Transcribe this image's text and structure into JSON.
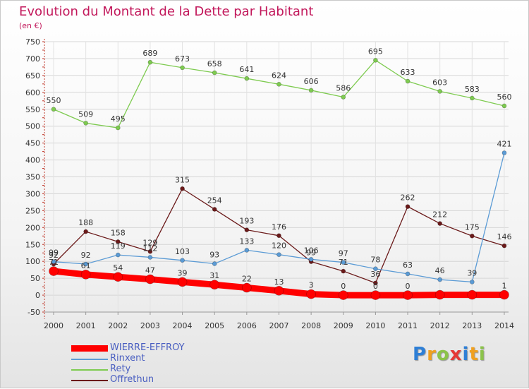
{
  "header": {
    "title": "Evolution du Montant de la Dette par Habitant",
    "subtitle": "(en €)"
  },
  "legend": {
    "items": [
      {
        "label": "WIERRE-EFFROY",
        "color": "#ff0000"
      },
      {
        "label": "Rinxent",
        "color": "#5b9bd5"
      },
      {
        "label": "Rety",
        "color": "#7ecb50"
      },
      {
        "label": "Offrethun",
        "color": "#6b1a1a"
      }
    ]
  },
  "logo": {
    "letters": [
      "P",
      "r",
      "o",
      "x",
      "i",
      "t",
      "i"
    ],
    "colors": [
      "#2e7fd6",
      "#f0a020",
      "#8bc34a",
      "#e53935",
      "#2e7fd6",
      "#f0a020",
      "#8bc34a"
    ]
  },
  "chart_data": {
    "type": "line",
    "x": [
      "2000",
      "2001",
      "2002",
      "2003",
      "2004",
      "2005",
      "2006",
      "2007",
      "2008",
      "2009",
      "2010",
      "2011",
      "2012",
      "2013",
      "2014"
    ],
    "ylim": [
      -50,
      750
    ],
    "yticks": [
      -50,
      0,
      50,
      100,
      150,
      200,
      250,
      300,
      350,
      400,
      450,
      500,
      550,
      600,
      650,
      700,
      750
    ],
    "grid": true,
    "series": [
      {
        "name": "Rety",
        "color": "#7ecb50",
        "values": [
          550,
          509,
          495,
          689,
          673,
          658,
          641,
          624,
          606,
          586,
          695,
          633,
          603,
          583,
          560
        ]
      },
      {
        "name": "Offrethun",
        "color": "#6b1a1a",
        "values": [
          92,
          188,
          158,
          129,
          315,
          254,
          193,
          176,
          99,
          71,
          36,
          262,
          212,
          175,
          146
        ]
      },
      {
        "name": "Rinxent",
        "color": "#5b9bd5",
        "values": [
          99,
          92,
          119,
          112,
          103,
          93,
          133,
          120,
          106,
          97,
          78,
          63,
          46,
          39,
          421
        ]
      },
      {
        "name": "WIERRE-EFFROY",
        "color": "#ff0000",
        "values": [
          71,
          61,
          54,
          47,
          39,
          31,
          22,
          13,
          3,
          0,
          0,
          0,
          1,
          1,
          1
        ]
      }
    ],
    "value_labels": {
      "WIERRE-EFFROY": [
        "71",
        "61",
        "54",
        "47",
        "39",
        "31",
        "22",
        "13",
        "3",
        "0",
        "0",
        "0",
        "",
        "",
        "1"
      ],
      "Rinxent": [
        "99",
        "92",
        "119",
        "112",
        "103",
        "93",
        "133",
        "120",
        "106",
        "97",
        "78",
        "63",
        "46",
        "39",
        "421"
      ],
      "Rety": [
        "550",
        "509",
        "495",
        "689",
        "673",
        "658",
        "641",
        "624",
        "606",
        "586",
        "695",
        "633",
        "603",
        "583",
        "560"
      ],
      "Offrethun": [
        "92",
        "188",
        "158",
        "129",
        "315",
        "254",
        "193",
        "176",
        "99",
        "71",
        "36",
        "262",
        "212",
        "175",
        "146"
      ]
    }
  }
}
